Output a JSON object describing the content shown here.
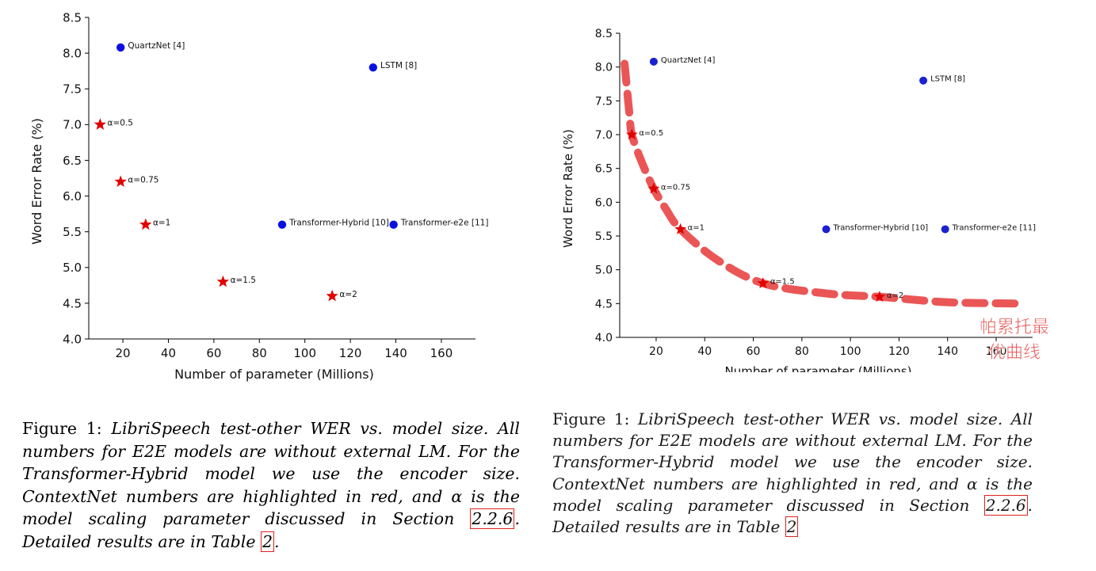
{
  "chart_data": [
    {
      "type": "scatter",
      "xlabel": "Number of parameter (Millions)",
      "ylabel": "Word Error Rate (%)",
      "xlim": [
        5,
        175
      ],
      "ylim": [
        4.0,
        8.5
      ],
      "x_ticks": [
        20,
        40,
        60,
        80,
        100,
        120,
        140,
        160
      ],
      "y_ticks": [
        "4.0",
        "4.5",
        "5.0",
        "5.5",
        "6.0",
        "6.5",
        "7.0",
        "7.5",
        "8.0",
        "8.5"
      ],
      "grid": false,
      "series": [
        {
          "color": "#0a10e0",
          "marker": "circle",
          "points": [
            {
              "x": 19,
              "y": 8.08,
              "label": "QuartzNet [4]"
            },
            {
              "x": 130,
              "y": 7.8,
              "label": "LSTM [8]"
            },
            {
              "x": 90,
              "y": 5.6,
              "label": "Transformer-Hybrid [10]"
            },
            {
              "x": 139,
              "y": 5.6,
              "label": "Transformer-e2e [11]"
            }
          ]
        },
        {
          "color": "#e00000",
          "marker": "star",
          "points": [
            {
              "x": 10,
              "y": 7.0,
              "label": "α=0.5"
            },
            {
              "x": 19,
              "y": 6.2,
              "label": "α=0.75"
            },
            {
              "x": 30,
              "y": 5.6,
              "label": "α=1"
            },
            {
              "x": 64,
              "y": 4.8,
              "label": "α=1.5"
            },
            {
              "x": 112,
              "y": 4.6,
              "label": "α=2"
            }
          ]
        }
      ]
    },
    {
      "type": "scatter",
      "xlabel": "Number of parameter (Millions)",
      "ylabel": "Word Error Rate (%)",
      "xlim": [
        5,
        175
      ],
      "ylim": [
        4.0,
        8.5
      ],
      "x_ticks": [
        20,
        40,
        60,
        80,
        100,
        120,
        140,
        160
      ],
      "y_ticks": [
        "4.0",
        "4.5",
        "5.0",
        "5.5",
        "6.0",
        "6.5",
        "7.0",
        "7.5",
        "8.0",
        "8.5"
      ],
      "grid": false,
      "series": [
        {
          "color": "#1a22d0",
          "marker": "circle",
          "points": [
            {
              "x": 19,
              "y": 8.08,
              "label": "QuartzNet [4]"
            },
            {
              "x": 130,
              "y": 7.8,
              "label": "LSTM [8]"
            },
            {
              "x": 90,
              "y": 5.6,
              "label": "Transformer-Hybrid [10]"
            },
            {
              "x": 139,
              "y": 5.6,
              "label": "Transformer-e2e [11]"
            }
          ]
        },
        {
          "color": "#e00000",
          "marker": "star",
          "points": [
            {
              "x": 10,
              "y": 7.0,
              "label": "α=0.5"
            },
            {
              "x": 19,
              "y": 6.2,
              "label": "α=0.75"
            },
            {
              "x": 30,
              "y": 5.6,
              "label": "α=1"
            },
            {
              "x": 64,
              "y": 4.8,
              "label": "α=1.5"
            },
            {
              "x": 112,
              "y": 4.6,
              "label": "α=2"
            }
          ]
        }
      ],
      "annotation": {
        "text_line1": "帕累托最",
        "text_line2": "优曲线",
        "color": "#e84848",
        "curve": [
          [
            7,
            8.05
          ],
          [
            9,
            7.3
          ],
          [
            10,
            7.0
          ],
          [
            14,
            6.6
          ],
          [
            19,
            6.2
          ],
          [
            24,
            5.9
          ],
          [
            30,
            5.6
          ],
          [
            45,
            5.15
          ],
          [
            64,
            4.8
          ],
          [
            90,
            4.65
          ],
          [
            112,
            4.6
          ],
          [
            140,
            4.52
          ],
          [
            170,
            4.5
          ]
        ]
      }
    }
  ],
  "captions": {
    "left": {
      "prefix": "Figure 1:",
      "body_before_ref": "LibriSpeech test-other WER vs. model size. All numbers for E2E models are without external LM. For the Transformer-Hybrid model we use the encoder size. ContextNet numbers are highlighted in red, and α is the model scaling parameter discussed in Section",
      "ref_section": "2.2.6",
      "body_after_ref": ". Detailed results are in Table",
      "ref_table": "2",
      "end": "."
    },
    "right": {
      "prefix": "Figure 1:",
      "body_before_ref": "LibriSpeech test-other WER vs. model size. All numbers for E2E models are without external LM. For the Transformer-Hybrid model we use the encoder size. ContextNet numbers are highlighted in red, and α is the model scaling parameter discussed in Section",
      "ref_section": "2.2.6",
      "body_after_ref": ". Detailed results are in Table",
      "ref_table": "2",
      "end": ""
    }
  }
}
